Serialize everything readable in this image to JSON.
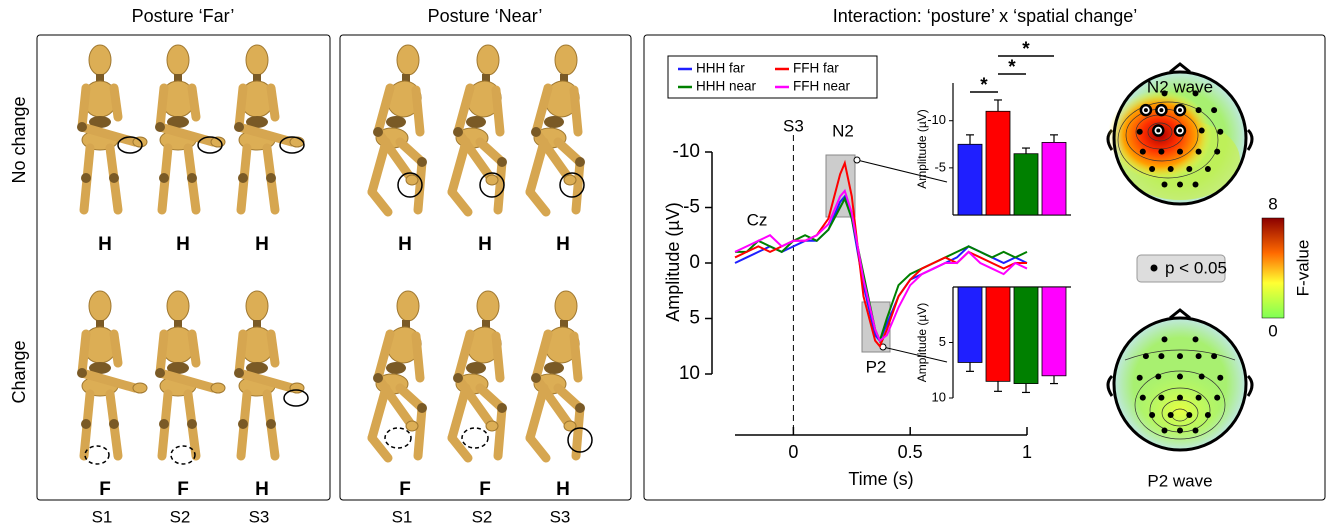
{
  "panels": {
    "far": {
      "title": "Posture ‘Far’"
    },
    "near": {
      "title": "Posture ‘Near’"
    },
    "interaction": {
      "title": "Interaction: ‘posture’ x ‘spatial change’"
    }
  },
  "row_labels": [
    "No change",
    "Change"
  ],
  "conditions": {
    "far": [
      [
        "H",
        "H",
        "H"
      ],
      [
        "F",
        "F",
        "H"
      ]
    ],
    "near": [
      [
        "H",
        "H",
        "H"
      ],
      [
        "F",
        "F",
        "H"
      ]
    ]
  },
  "columns": [
    "S1",
    "S2",
    "S3"
  ],
  "chart_data": [
    {
      "type": "line",
      "xlabel": "Time (s)",
      "ylabel": "Amplitude (µV)",
      "annotations": {
        "onset": "S3",
        "n2": "N2",
        "p2": "P2",
        "electrode": "Cz"
      },
      "x": [
        -0.25,
        -0.2,
        -0.15,
        -0.1,
        -0.05,
        0,
        0.05,
        0.1,
        0.15,
        0.2,
        0.22,
        0.25,
        0.3,
        0.35,
        0.37,
        0.4,
        0.45,
        0.5,
        0.55,
        0.6,
        0.65,
        0.7,
        0.75,
        0.8,
        0.85,
        0.9,
        0.95,
        1.0
      ],
      "series": [
        {
          "name": "HHH far",
          "color": "#1f1fff",
          "values": [
            0,
            -0.5,
            -1,
            -1.5,
            -1,
            -1.5,
            -2,
            -2,
            -3,
            -5.5,
            -6,
            -4,
            2,
            6.5,
            7,
            5.5,
            3,
            1.5,
            1,
            0.5,
            0,
            -0.5,
            -1.5,
            -1,
            -0.5,
            0,
            -0.5,
            0
          ]
        },
        {
          "name": "HHH near",
          "color": "#008000",
          "values": [
            -1,
            -1,
            -2,
            -1.5,
            -1,
            -2,
            -2.5,
            -2,
            -3,
            -5,
            -5.8,
            -4,
            1,
            6,
            7,
            5,
            2,
            1,
            0.5,
            0,
            -0.5,
            -1,
            -1.5,
            -1,
            -0.5,
            -1,
            -0.5,
            -1
          ]
        },
        {
          "name": "FFH far",
          "color": "#ff0000",
          "values": [
            -0.5,
            -1,
            -1.5,
            -1,
            -1.5,
            -2,
            -2,
            -2.5,
            -4,
            -8,
            -9,
            -6,
            3,
            7,
            7.5,
            6,
            3,
            1.5,
            0.5,
            0,
            -0.5,
            0,
            -1,
            -0.5,
            0,
            0.5,
            0,
            0
          ]
        },
        {
          "name": "FFH near",
          "color": "#ff00ff",
          "values": [
            -1,
            -1.5,
            -2,
            -2.5,
            -1.5,
            -2,
            -2,
            -2.5,
            -3.5,
            -6,
            -6.5,
            -4.5,
            1.5,
            6,
            7,
            6.5,
            4,
            2,
            1,
            0.5,
            0,
            0,
            -1,
            0,
            0.5,
            1,
            0,
            0.5
          ]
        }
      ],
      "xlim": [
        -0.25,
        1
      ],
      "xticks": [
        0,
        0.5,
        1
      ],
      "ylim": [
        10,
        -10
      ],
      "yticks": [
        -10,
        -5,
        0,
        5,
        10
      ]
    },
    {
      "type": "bar",
      "ylabel": "Amplitude (µV)",
      "values": [
        -7.5,
        -11,
        -6.5,
        -7.7
      ],
      "errors": [
        1,
        1.2,
        0.6,
        0.8
      ],
      "colors": [
        "#1f1fff",
        "#ff0000",
        "#008000",
        "#ff00ff"
      ],
      "ylim": [
        0,
        -14
      ],
      "yticks": [
        -5,
        -10
      ],
      "significance": [
        "*",
        "*",
        "*"
      ]
    },
    {
      "type": "bar",
      "ylabel": "Amplitude (µV)",
      "values": [
        6.8,
        8.5,
        8.7,
        8.0
      ],
      "errors": [
        0.8,
        0.9,
        0.8,
        0.7
      ],
      "colors": [
        "#1f1fff",
        "#ff0000",
        "#008000",
        "#ff00ff"
      ],
      "ylim": [
        10,
        0
      ],
      "yticks": [
        5,
        10
      ]
    }
  ],
  "topoplots": {
    "n2_title": "N2 wave",
    "p2_title": "P2 wave",
    "legend": "p < 0.05",
    "colorbar_label": "F-value",
    "colorbar_ticks": [
      8,
      0
    ]
  }
}
